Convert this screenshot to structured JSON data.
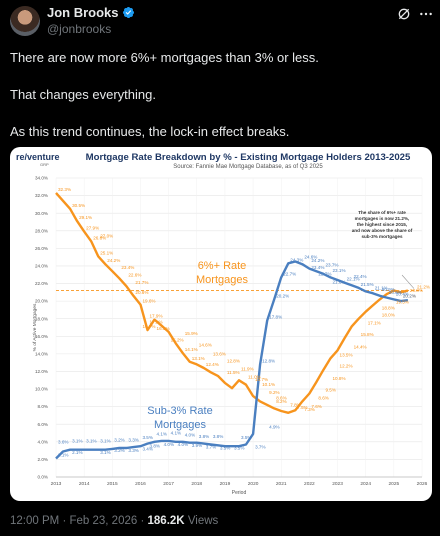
{
  "post": {
    "author_name": "Jon Brooks",
    "author_handle": "@jonbrooks",
    "text_lines": [
      "There are now more 6%+ mortgages than 3% or less.",
      "That changes everything.",
      "As this trend continues, the lock-in effect breaks."
    ],
    "time": "12:00 PM",
    "date": "Feb 23, 2026",
    "separator": "·",
    "views_count": "186.2K",
    "views_label": "Views"
  },
  "icons": {
    "verified": "verified-badge-icon",
    "grok": "grok-icon",
    "more": "more-options-icon"
  },
  "colors": {
    "orange": "#f7941d",
    "blue": "#4a7fc0",
    "verified": "#1d9bf0",
    "title": "#1f3864"
  },
  "chart_data": {
    "type": "line",
    "brand": "re/venture",
    "brand_sub": "GRP",
    "title": "Mortgage Rate Breakdown by % - Existing Mortgage Holders 2013-2025",
    "subtitle": "Source: Fannie Mae Mortgage Database, as of Q3 2025",
    "xlabel": "Period",
    "ylabel": "% of Active Mortgages",
    "ylim": [
      0,
      34
    ],
    "xlim": [
      2013,
      2026
    ],
    "y_ticks": [
      "0.0%",
      "2.0%",
      "4.0%",
      "6.0%",
      "8.0%",
      "10.0%",
      "12.0%",
      "14.0%",
      "16.0%",
      "18.0%",
      "20.0%",
      "22.0%",
      "24.0%",
      "26.0%",
      "28.0%",
      "30.0%",
      "32.0%",
      "34.0%"
    ],
    "x_ticks": [
      "2013",
      "2014",
      "2015",
      "2016",
      "2017",
      "2018",
      "2019",
      "2020",
      "2021",
      "2022",
      "2023",
      "2024",
      "2025",
      "2026"
    ],
    "grid": true,
    "legend": "inline-labels",
    "reference_line": 21.2,
    "annotation": "The share of 6%+ rate mortgages is now 21.2%, the highest since 2015, and now above the share of sub-3% mortgages",
    "series": [
      {
        "name": "6%+ Rate Mortgages",
        "label_lines": [
          "6%+ Rate",
          "Mortgages"
        ],
        "x": [
          2013.0,
          2013.5,
          2013.75,
          2014.0,
          2014.25,
          2014.5,
          2014.75,
          2015.0,
          2015.25,
          2015.5,
          2015.75,
          2016.0,
          2016.25,
          2016.5,
          2016.75,
          2017.0,
          2017.25,
          2017.5,
          2017.75,
          2018.0,
          2018.25,
          2018.5,
          2018.75,
          2019.0,
          2019.25,
          2019.5,
          2019.75,
          2020.0,
          2020.25,
          2020.5,
          2020.75,
          2021.0,
          2021.25,
          2021.5,
          2021.75,
          2022.0,
          2022.25,
          2022.5,
          2022.75,
          2023.0,
          2023.25,
          2023.5,
          2023.75,
          2024.0,
          2024.25,
          2024.5,
          2024.75,
          2025.0,
          2025.25,
          2025.5
        ],
        "values": [
          32.3,
          30.5,
          29.1,
          27.9,
          26.8,
          25.1,
          24.2,
          23.4,
          22.6,
          21.7,
          20.6,
          19.6,
          16.7,
          17.9,
          17.2,
          16.5,
          15.2,
          14.1,
          13.1,
          12.8,
          12.4,
          11.9,
          11.5,
          10.7,
          10.1,
          11.0,
          10.5,
          9.2,
          8.6,
          8.2,
          7.8,
          7.5,
          7.3,
          7.6,
          8.6,
          9.5,
          10.8,
          12.2,
          13.5,
          14.4,
          15.8,
          17.1,
          18.0,
          18.8,
          19.5,
          20.2,
          20.8,
          21.2,
          21.0,
          21.2
        ],
        "data_labels": [
          {
            "x": 2013.0,
            "y": 32.3,
            "text": "32.3%"
          },
          {
            "x": 2013.5,
            "y": 30.5,
            "text": "30.5%"
          },
          {
            "x": 2013.75,
            "y": 29.1,
            "text": "29.1%"
          },
          {
            "x": 2014.0,
            "y": 27.9,
            "text": "27.9%"
          },
          {
            "x": 2014.5,
            "y": 27.0,
            "text": "27.0%"
          },
          {
            "x": 2014.25,
            "y": 26.8,
            "text": "26.8%"
          },
          {
            "x": 2014.5,
            "y": 25.1,
            "text": "25.1%"
          },
          {
            "x": 2014.75,
            "y": 24.2,
            "text": "24.2%"
          },
          {
            "x": 2015.25,
            "y": 23.4,
            "text": "23.4%"
          },
          {
            "x": 2015.5,
            "y": 22.6,
            "text": "22.6%"
          },
          {
            "x": 2015.75,
            "y": 21.7,
            "text": "21.7%"
          },
          {
            "x": 2016.0,
            "y": 19.6,
            "text": "19.6%"
          },
          {
            "x": 2015.75,
            "y": 20.6,
            "text": "20.6%"
          },
          {
            "x": 2016.0,
            "y": 16.7,
            "text": "16.7%"
          },
          {
            "x": 2016.25,
            "y": 17.9,
            "text": "17.9%"
          },
          {
            "x": 2016.25,
            "y": 17.2,
            "text": "17.2%"
          },
          {
            "x": 2016.5,
            "y": 16.5,
            "text": "16.5%"
          },
          {
            "x": 2017.5,
            "y": 15.9,
            "text": "15.9%"
          },
          {
            "x": 2017.0,
            "y": 15.2,
            "text": "15.2%"
          },
          {
            "x": 2018.0,
            "y": 14.6,
            "text": "14.6%"
          },
          {
            "x": 2017.5,
            "y": 14.1,
            "text": "14.1%"
          },
          {
            "x": 2018.5,
            "y": 13.6,
            "text": "13.6%"
          },
          {
            "x": 2017.75,
            "y": 13.1,
            "text": "13.1%"
          },
          {
            "x": 2019.0,
            "y": 12.8,
            "text": "12.8%"
          },
          {
            "x": 2018.25,
            "y": 12.4,
            "text": "12.4%"
          },
          {
            "x": 2019.5,
            "y": 11.9,
            "text": "11.9%"
          },
          {
            "x": 2019.0,
            "y": 11.5,
            "text": "11.5%"
          },
          {
            "x": 2019.75,
            "y": 11.0,
            "text": "11.0%"
          },
          {
            "x": 2020.0,
            "y": 10.7,
            "text": "10.7%"
          },
          {
            "x": 2020.25,
            "y": 10.1,
            "text": "10.1%"
          },
          {
            "x": 2020.5,
            "y": 9.2,
            "text": "9.2%"
          },
          {
            "x": 2020.75,
            "y": 8.6,
            "text": "8.6%"
          },
          {
            "x": 2020.75,
            "y": 8.2,
            "text": "8.2%"
          },
          {
            "x": 2021.25,
            "y": 7.8,
            "text": "7.8%"
          },
          {
            "x": 2021.5,
            "y": 7.5,
            "text": "7.5%"
          },
          {
            "x": 2021.75,
            "y": 7.3,
            "text": "7.3%"
          },
          {
            "x": 2022.0,
            "y": 7.6,
            "text": "7.6%"
          },
          {
            "x": 2022.25,
            "y": 8.6,
            "text": "8.6%"
          },
          {
            "x": 2022.5,
            "y": 9.5,
            "text": "9.5%"
          },
          {
            "x": 2022.75,
            "y": 10.8,
            "text": "10.8%"
          },
          {
            "x": 2023.0,
            "y": 12.2,
            "text": "12.2%"
          },
          {
            "x": 2023.0,
            "y": 13.5,
            "text": "13.5%"
          },
          {
            "x": 2023.5,
            "y": 14.4,
            "text": "14.4%"
          },
          {
            "x": 2023.75,
            "y": 15.8,
            "text": "15.8%"
          },
          {
            "x": 2024.0,
            "y": 17.1,
            "text": "17.1%"
          },
          {
            "x": 2024.5,
            "y": 18.0,
            "text": "18.0%"
          },
          {
            "x": 2024.5,
            "y": 18.8,
            "text": "18.8%"
          },
          {
            "x": 2025.0,
            "y": 19.5,
            "text": "19.5%"
          },
          {
            "x": 2025.25,
            "y": 20.2,
            "text": "20.2%"
          },
          {
            "x": 2025.5,
            "y": 20.8,
            "text": "20.8%"
          },
          {
            "x": 2025.75,
            "y": 21.2,
            "text": "21.2%"
          }
        ]
      },
      {
        "name": "Sub-3% Rate Mortgages",
        "label_lines": [
          "Sub-3% Rate",
          "Mortgages"
        ],
        "x": [
          2013.0,
          2013.25,
          2013.5,
          2013.75,
          2014.0,
          2014.25,
          2014.5,
          2014.75,
          2015.0,
          2015.25,
          2015.5,
          2015.75,
          2016.0,
          2016.25,
          2016.5,
          2016.75,
          2017.0,
          2017.25,
          2017.5,
          2017.75,
          2018.0,
          2018.25,
          2018.5,
          2018.75,
          2019.0,
          2019.25,
          2019.5,
          2019.75,
          2020.0,
          2020.25,
          2020.5,
          2020.75,
          2021.0,
          2021.25,
          2021.5,
          2021.75,
          2022.0,
          2022.25,
          2022.5,
          2022.75,
          2023.0,
          2023.25,
          2023.5,
          2023.75,
          2024.0,
          2024.25,
          2024.5,
          2024.75,
          2025.0,
          2025.25,
          2025.5
        ],
        "values": [
          2.1,
          2.9,
          3.1,
          3.1,
          3.1,
          3.1,
          3.1,
          3.1,
          3.2,
          3.3,
          3.3,
          3.4,
          3.5,
          3.8,
          4.0,
          4.1,
          4.1,
          4.0,
          4.0,
          3.9,
          3.9,
          3.8,
          3.7,
          3.6,
          3.5,
          3.5,
          3.5,
          3.7,
          4.9,
          12.8,
          17.8,
          20.2,
          22.7,
          24.3,
          24.5,
          24.2,
          23.7,
          23.4,
          23.1,
          22.7,
          22.4,
          22.1,
          21.8,
          21.5,
          21.1,
          20.9,
          20.6,
          20.4,
          20.2,
          20.0,
          20.1
        ],
        "data_labels": [
          {
            "x": 2013.0,
            "y": 2.1,
            "text": "2.1%"
          },
          {
            "x": 2013.0,
            "y": 3.6,
            "text": "3.6%"
          },
          {
            "x": 2013.5,
            "y": 3.7,
            "text": "3.1%"
          },
          {
            "x": 2014.0,
            "y": 3.7,
            "text": "3.1%"
          },
          {
            "x": 2014.5,
            "y": 3.7,
            "text": "3.1%"
          },
          {
            "x": 2014.5,
            "y": 2.4,
            "text": "3.1%"
          },
          {
            "x": 2015.0,
            "y": 3.8,
            "text": "3.2%"
          },
          {
            "x": 2015.5,
            "y": 3.8,
            "text": "3.3%"
          },
          {
            "x": 2016.0,
            "y": 4.1,
            "text": "3.5%"
          },
          {
            "x": 2016.5,
            "y": 4.5,
            "text": "4.1%"
          },
          {
            "x": 2017.0,
            "y": 4.6,
            "text": "4.1%"
          },
          {
            "x": 2017.5,
            "y": 4.4,
            "text": "4.0%"
          },
          {
            "x": 2018.0,
            "y": 4.2,
            "text": "3.8%"
          },
          {
            "x": 2018.5,
            "y": 4.2,
            "text": "3.8%"
          },
          {
            "x": 2019.5,
            "y": 4.1,
            "text": "3.5%"
          },
          {
            "x": 2013.5,
            "y": 2.4,
            "text": "2.1%"
          },
          {
            "x": 2015.0,
            "y": 2.6,
            "text": "3.2%"
          },
          {
            "x": 2015.5,
            "y": 2.6,
            "text": "3.3%"
          },
          {
            "x": 2016.0,
            "y": 2.8,
            "text": "3.4%"
          },
          {
            "x": 2016.25,
            "y": 3.1,
            "text": "3.8%"
          },
          {
            "x": 2016.75,
            "y": 3.3,
            "text": "4.0%"
          },
          {
            "x": 2017.25,
            "y": 3.3,
            "text": "4.0%"
          },
          {
            "x": 2017.75,
            "y": 3.2,
            "text": "3.9%"
          },
          {
            "x": 2018.25,
            "y": 3.0,
            "text": "3.7%"
          },
          {
            "x": 2018.75,
            "y": 2.9,
            "text": "3.5%"
          },
          {
            "x": 2019.25,
            "y": 2.9,
            "text": "3.5%"
          },
          {
            "x": 2020.0,
            "y": 3.0,
            "text": "3.7%"
          },
          {
            "x": 2020.5,
            "y": 5.3,
            "text": "4.9%"
          },
          {
            "x": 2020.25,
            "y": 12.8,
            "text": "12.8%"
          },
          {
            "x": 2020.5,
            "y": 17.8,
            "text": "17.8%"
          },
          {
            "x": 2020.75,
            "y": 20.2,
            "text": "20.2%"
          },
          {
            "x": 2021.0,
            "y": 22.7,
            "text": "22.7%"
          },
          {
            "x": 2021.25,
            "y": 24.3,
            "text": "24.3%"
          },
          {
            "x": 2021.75,
            "y": 24.6,
            "text": "24.6%"
          },
          {
            "x": 2022.0,
            "y": 24.2,
            "text": "24.2%"
          },
          {
            "x": 2022.5,
            "y": 23.7,
            "text": "23.7%"
          },
          {
            "x": 2022.0,
            "y": 23.4,
            "text": "23.4%"
          },
          {
            "x": 2022.75,
            "y": 23.1,
            "text": "23.1%"
          },
          {
            "x": 2022.25,
            "y": 22.7,
            "text": "22.7%"
          },
          {
            "x": 2023.5,
            "y": 22.4,
            "text": "22.4%"
          },
          {
            "x": 2023.25,
            "y": 22.1,
            "text": "22.1%"
          },
          {
            "x": 2022.75,
            "y": 21.8,
            "text": "21.8%"
          },
          {
            "x": 2023.75,
            "y": 21.5,
            "text": "21.5%"
          },
          {
            "x": 2024.25,
            "y": 21.1,
            "text": "21.1%"
          },
          {
            "x": 2024.5,
            "y": 20.9,
            "text": "20.9%"
          },
          {
            "x": 2024.75,
            "y": 20.6,
            "text": "20.6%"
          },
          {
            "x": 2025.0,
            "y": 20.4,
            "text": "20.4%"
          },
          {
            "x": 2025.25,
            "y": 20.2,
            "text": "20.2%"
          }
        ]
      }
    ]
  }
}
